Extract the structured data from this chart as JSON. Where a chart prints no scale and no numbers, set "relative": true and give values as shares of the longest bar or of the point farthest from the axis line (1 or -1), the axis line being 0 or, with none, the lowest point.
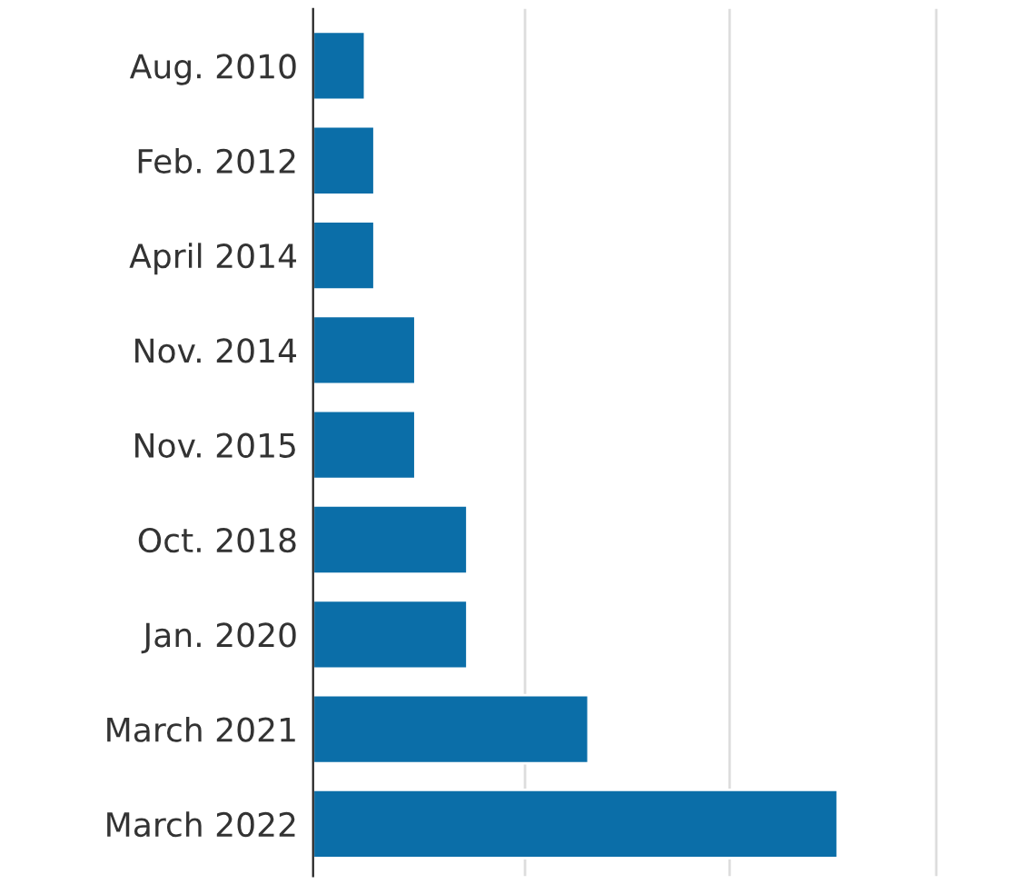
{
  "chart_data": {
    "type": "bar",
    "orientation": "horizontal",
    "relative": true,
    "ref_lines": [
      {
        "axis": "x",
        "value": 0.404,
        "color": "#dddddd"
      },
      {
        "axis": "x",
        "value": 0.794,
        "color": "#dddddd"
      },
      {
        "axis": "x",
        "value": 1.188,
        "color": "#dddddd"
      }
    ],
    "color": "#0b6ea8",
    "categories": [
      "Aug. 2010",
      "Feb. 2012",
      "April 2014",
      "Nov. 2014",
      "Nov. 2015",
      "Oct. 2018",
      "Jan. 2020",
      "March 2021",
      "March 2022"
    ],
    "values": [
      0.099,
      0.117,
      0.117,
      0.195,
      0.195,
      0.294,
      0.294,
      0.525,
      1
    ]
  }
}
